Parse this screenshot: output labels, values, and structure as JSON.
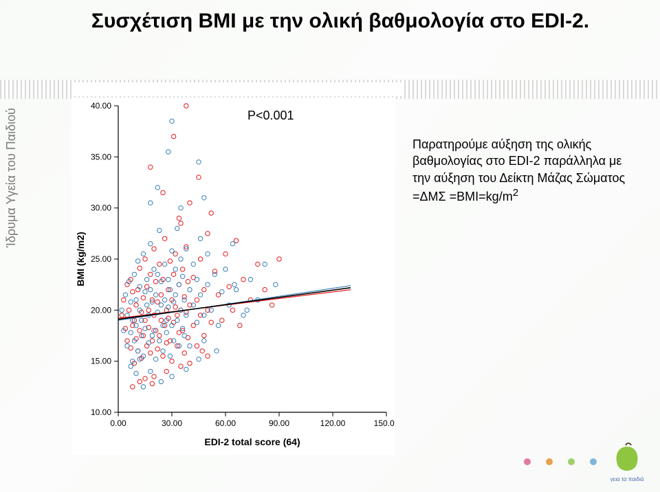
{
  "title": "Συσχέτιση BMI με την ολική βαθμολογία στο EDI-2.",
  "side_text": "Ίδρυμα Υγεία του Παιδιού",
  "p_value_label": "P<0.001",
  "interpretation": "Παρατηρούμε αύξηση της ολικής βαθμολογίας στο EDI-2 παράλληλα με την αύξηση του Δείκτη Μάζας Σώματος =ΔΜΣ =BMI=kg/m",
  "interpretation_sup": "2",
  "chart": {
    "type": "scatter",
    "xlabel": "EDI-2 total score (64)",
    "ylabel": "BMI (kg/m2)",
    "label_fontsize": 14,
    "tick_fontsize": 12,
    "xlim": [
      0,
      150
    ],
    "ylim": [
      10,
      40
    ],
    "xticks": [
      0,
      30,
      60,
      90,
      120,
      150
    ],
    "xtick_labels": [
      "0.00",
      "30.00",
      "60.00",
      "90.00",
      "120.00",
      "150.00"
    ],
    "yticks": [
      10,
      15,
      20,
      25,
      30,
      35,
      40
    ],
    "ytick_labels": [
      "10.00",
      "15.00",
      "20.00",
      "25.00",
      "30.00",
      "35.00",
      "40.00"
    ],
    "axis_color": "#000000",
    "tick_len": 6,
    "marker_radius": 3.2,
    "marker_stroke_width": 1.0,
    "series": [
      {
        "color": "#e41a1c",
        "fit_line": {
          "x1": 0,
          "y1": 19.2,
          "x2": 130,
          "y2": 22.0,
          "color": "#e41a1c",
          "width": 1.2
        },
        "points": [
          [
            2,
            19.5
          ],
          [
            3,
            21.0
          ],
          [
            4,
            18.2
          ],
          [
            5,
            22.5
          ],
          [
            5,
            17.0
          ],
          [
            6,
            20.0
          ],
          [
            7,
            16.3
          ],
          [
            7,
            23.0
          ],
          [
            8,
            21.8
          ],
          [
            8,
            18.5
          ],
          [
            9,
            19.0
          ],
          [
            9,
            14.8
          ],
          [
            10,
            20.5
          ],
          [
            10,
            17.2
          ],
          [
            11,
            22.0
          ],
          [
            11,
            16.0
          ],
          [
            12,
            24.1
          ],
          [
            12,
            18.0
          ],
          [
            13,
            19.8
          ],
          [
            13,
            15.3
          ],
          [
            14,
            21.2
          ],
          [
            14,
            17.5
          ],
          [
            15,
            25.0
          ],
          [
            15,
            19.0
          ],
          [
            16,
            16.5
          ],
          [
            16,
            22.3
          ],
          [
            17,
            20.0
          ],
          [
            17,
            18.3
          ],
          [
            18,
            23.5
          ],
          [
            18,
            15.8
          ],
          [
            19,
            21.0
          ],
          [
            19,
            17.0
          ],
          [
            20,
            26.0
          ],
          [
            20,
            19.5
          ],
          [
            21,
            18.0
          ],
          [
            21,
            22.8
          ],
          [
            22,
            16.2
          ],
          [
            22,
            20.8
          ],
          [
            23,
            24.5
          ],
          [
            23,
            17.5
          ],
          [
            24,
            19.0
          ],
          [
            24,
            21.5
          ],
          [
            25,
            15.5
          ],
          [
            25,
            23.0
          ],
          [
            26,
            18.5
          ],
          [
            26,
            27.0
          ],
          [
            27,
            20.0
          ],
          [
            27,
            16.8
          ],
          [
            28,
            22.0
          ],
          [
            28,
            19.2
          ],
          [
            29,
            24.8
          ],
          [
            29,
            17.0
          ],
          [
            30,
            21.0
          ],
          [
            30,
            15.0
          ],
          [
            31,
            18.8
          ],
          [
            31,
            23.5
          ],
          [
            32,
            20.3
          ],
          [
            32,
            25.5
          ],
          [
            33,
            16.5
          ],
          [
            33,
            19.5
          ],
          [
            34,
            22.5
          ],
          [
            34,
            17.8
          ],
          [
            35,
            28.5
          ],
          [
            35,
            20.0
          ],
          [
            36,
            18.0
          ],
          [
            36,
            24.0
          ],
          [
            37,
            21.3
          ],
          [
            37,
            15.8
          ],
          [
            38,
            19.8
          ],
          [
            38,
            26.2
          ],
          [
            39,
            17.3
          ],
          [
            39,
            22.8
          ],
          [
            40,
            20.5
          ],
          [
            40,
            30.5
          ],
          [
            42,
            18.5
          ],
          [
            42,
            23.2
          ],
          [
            44,
            21.0
          ],
          [
            44,
            16.5
          ],
          [
            46,
            19.5
          ],
          [
            46,
            25.0
          ],
          [
            48,
            22.0
          ],
          [
            48,
            17.5
          ],
          [
            50,
            20.0
          ],
          [
            50,
            27.5
          ],
          [
            52,
            18.8
          ],
          [
            54,
            23.8
          ],
          [
            56,
            21.5
          ],
          [
            58,
            19.0
          ],
          [
            60,
            25.5
          ],
          [
            62,
            22.3
          ],
          [
            64,
            20.0
          ],
          [
            66,
            26.8
          ],
          [
            68,
            18.5
          ],
          [
            70,
            23.0
          ],
          [
            74,
            21.0
          ],
          [
            78,
            24.5
          ],
          [
            82,
            22.0
          ],
          [
            86,
            20.5
          ],
          [
            90,
            25.0
          ],
          [
            31,
            37.0
          ],
          [
            18,
            34.0
          ],
          [
            38,
            40.0
          ],
          [
            45,
            33.0
          ],
          [
            25,
            31.5
          ],
          [
            52,
            29.5
          ],
          [
            34,
            29.0
          ],
          [
            12,
            13.0
          ],
          [
            8,
            12.5
          ],
          [
            20,
            13.5
          ],
          [
            27,
            14.0
          ],
          [
            35,
            14.5
          ],
          [
            50,
            15.5
          ],
          [
            15,
            13.3
          ],
          [
            40,
            14.8
          ],
          [
            47,
            16.0
          ],
          [
            19,
            12.8
          ]
        ]
      },
      {
        "color": "#377eb8",
        "fit_line": {
          "x1": 0,
          "y1": 19.0,
          "x2": 130,
          "y2": 22.4,
          "color": "#377eb8",
          "width": 1.2
        },
        "points": [
          [
            2,
            20.0
          ],
          [
            3,
            18.0
          ],
          [
            4,
            21.5
          ],
          [
            5,
            16.5
          ],
          [
            5,
            19.5
          ],
          [
            6,
            22.8
          ],
          [
            7,
            17.8
          ],
          [
            7,
            20.8
          ],
          [
            8,
            15.0
          ],
          [
            8,
            19.0
          ],
          [
            9,
            23.5
          ],
          [
            9,
            17.0
          ],
          [
            10,
            21.0
          ],
          [
            10,
            18.5
          ],
          [
            11,
            24.8
          ],
          [
            11,
            16.0
          ],
          [
            12,
            20.0
          ],
          [
            12,
            22.3
          ],
          [
            13,
            17.5
          ],
          [
            13,
            19.0
          ],
          [
            14,
            25.5
          ],
          [
            14,
            15.5
          ],
          [
            15,
            21.8
          ],
          [
            15,
            18.2
          ],
          [
            16,
            23.0
          ],
          [
            16,
            20.5
          ],
          [
            17,
            16.8
          ],
          [
            17,
            19.5
          ],
          [
            18,
            22.0
          ],
          [
            18,
            26.5
          ],
          [
            19,
            17.5
          ],
          [
            19,
            20.8
          ],
          [
            20,
            24.0
          ],
          [
            20,
            18.0
          ],
          [
            21,
            21.5
          ],
          [
            21,
            15.2
          ],
          [
            22,
            19.8
          ],
          [
            22,
            23.5
          ],
          [
            23,
            17.0
          ],
          [
            23,
            27.8
          ],
          [
            24,
            20.5
          ],
          [
            24,
            22.8
          ],
          [
            25,
            18.5
          ],
          [
            25,
            16.0
          ],
          [
            26,
            21.0
          ],
          [
            26,
            24.5
          ],
          [
            27,
            19.0
          ],
          [
            27,
            17.8
          ],
          [
            28,
            23.0
          ],
          [
            28,
            20.3
          ],
          [
            29,
            15.5
          ],
          [
            29,
            22.0
          ],
          [
            30,
            25.8
          ],
          [
            30,
            18.5
          ],
          [
            31,
            20.8
          ],
          [
            31,
            17.0
          ],
          [
            32,
            24.0
          ],
          [
            32,
            21.5
          ],
          [
            33,
            19.0
          ],
          [
            33,
            28.0
          ],
          [
            34,
            16.5
          ],
          [
            34,
            22.5
          ],
          [
            35,
            20.0
          ],
          [
            35,
            25.0
          ],
          [
            36,
            18.2
          ],
          [
            36,
            23.3
          ],
          [
            37,
            21.0
          ],
          [
            37,
            17.5
          ],
          [
            38,
            19.5
          ],
          [
            38,
            26.0
          ],
          [
            40,
            22.0
          ],
          [
            40,
            16.5
          ],
          [
            42,
            20.5
          ],
          [
            42,
            24.5
          ],
          [
            44,
            18.8
          ],
          [
            44,
            23.0
          ],
          [
            46,
            21.5
          ],
          [
            46,
            27.0
          ],
          [
            48,
            19.5
          ],
          [
            48,
            17.0
          ],
          [
            50,
            22.5
          ],
          [
            50,
            25.5
          ],
          [
            52,
            20.0
          ],
          [
            54,
            23.5
          ],
          [
            56,
            18.5
          ],
          [
            58,
            21.8
          ],
          [
            60,
            24.0
          ],
          [
            62,
            20.5
          ],
          [
            64,
            26.5
          ],
          [
            66,
            22.0
          ],
          [
            70,
            19.5
          ],
          [
            74,
            23.0
          ],
          [
            78,
            21.0
          ],
          [
            82,
            24.5
          ],
          [
            88,
            22.5
          ],
          [
            65,
            22.5
          ],
          [
            72,
            20.0
          ],
          [
            35,
            30.0
          ],
          [
            22,
            32.0
          ],
          [
            45,
            34.5
          ],
          [
            28,
            35.5
          ],
          [
            30,
            38.5
          ],
          [
            18,
            30.5
          ],
          [
            48,
            31.0
          ],
          [
            10,
            13.8
          ],
          [
            14,
            12.5
          ],
          [
            18,
            14.0
          ],
          [
            24,
            13.0
          ],
          [
            30,
            13.5
          ],
          [
            38,
            14.2
          ],
          [
            45,
            15.2
          ],
          [
            55,
            16.0
          ],
          [
            7,
            14.5
          ],
          [
            12,
            15.2
          ]
        ]
      }
    ],
    "black_fit_line": {
      "x1": 0,
      "y1": 19.1,
      "x2": 130,
      "y2": 22.2,
      "color": "#000000",
      "width": 1.6
    }
  },
  "deco_dots": {
    "colors": [
      "#e07b9a",
      "#e7a24a",
      "#9fcf6a",
      "#7fb6d6"
    ]
  },
  "logo": {
    "leaf_color": "#8ec641",
    "stem_color": "#5d4a2a",
    "text": "γεια τα παιδιά",
    "text_color": "#4a6aa8"
  },
  "colors": {
    "page_bg": "#ffffff",
    "title_color": "#000000",
    "side_text_color": "#7a7a7a"
  }
}
